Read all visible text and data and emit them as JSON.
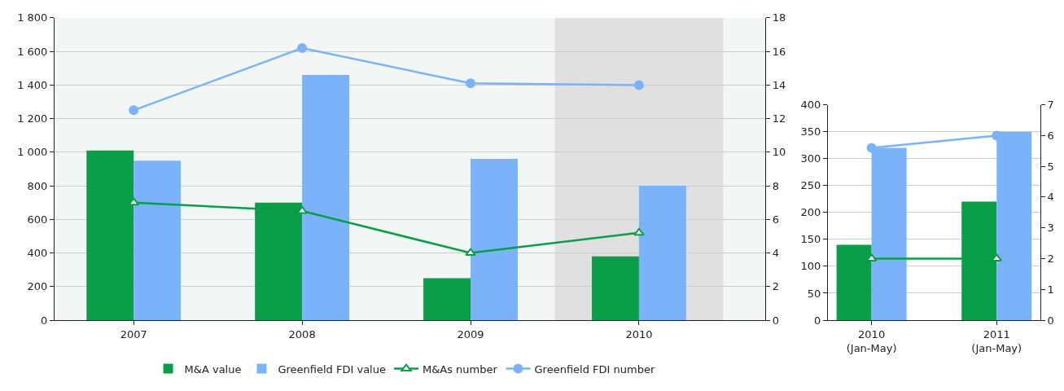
{
  "chart_data": [
    {
      "type": "bar",
      "categories": [
        "2007",
        "2008",
        "2009",
        "2010"
      ],
      "series": [
        {
          "name": "M&A value",
          "color": "#0a9e48",
          "values": [
            1010,
            700,
            250,
            380
          ]
        },
        {
          "name": "Greenfield FDI value",
          "color": "#7ab3fa",
          "values": [
            950,
            1460,
            960,
            800
          ]
        },
        {
          "name": "M&As number",
          "type": "line",
          "axis": "y2",
          "marker": "triangle",
          "color": "#0a9e48",
          "values": [
            7.0,
            6.5,
            4.0,
            5.2
          ]
        },
        {
          "name": "Greenfield FDI number",
          "type": "line",
          "axis": "y2",
          "marker": "circle",
          "color": "#7ab3fa",
          "values": [
            12.5,
            16.2,
            14.1,
            14.0
          ]
        }
      ],
      "ylim": [
        0,
        1800
      ],
      "yticks": [
        0,
        200,
        400,
        600,
        800,
        {
          "value": 1000,
          "label": "1 000"
        },
        {
          "value": 1200,
          "label": "1 200"
        },
        {
          "value": 1400,
          "label": "1 400"
        },
        {
          "value": 1600,
          "label": "1 600"
        },
        {
          "value": 1800,
          "label": "1 800"
        }
      ],
      "y2lim": [
        0,
        18
      ],
      "y2ticks": [
        0,
        2,
        4,
        6,
        8,
        10,
        12,
        14,
        16,
        18
      ],
      "bands": [
        {
          "axis": "x",
          "from": "2010",
          "to": "2010",
          "color": "#e0e0e0"
        }
      ],
      "grid": "y",
      "legend": "bottom"
    },
    {
      "type": "bar",
      "categories": [
        "2010\n(Jan-May)",
        "2011\n(Jan-May)"
      ],
      "series": [
        {
          "color": "#0a9e48",
          "values": [
            140,
            220
          ]
        },
        {
          "color": "#7ab3fa",
          "values": [
            320,
            350
          ]
        },
        {
          "type": "line",
          "axis": "y2",
          "marker": "triangle",
          "color": "#0a9e48",
          "values": [
            2,
            2
          ]
        },
        {
          "type": "line",
          "axis": "y2",
          "marker": "circle",
          "color": "#7ab3fa",
          "values": [
            5.6,
            6.0
          ]
        }
      ],
      "ylim": [
        0,
        400
      ],
      "yticks": [
        0,
        50,
        100,
        150,
        200,
        250,
        300,
        350,
        400
      ],
      "y2lim": [
        0,
        7
      ],
      "y2ticks": [
        0,
        1,
        2,
        3,
        4,
        5,
        6,
        7
      ],
      "grid": "y",
      "legend": false
    }
  ]
}
